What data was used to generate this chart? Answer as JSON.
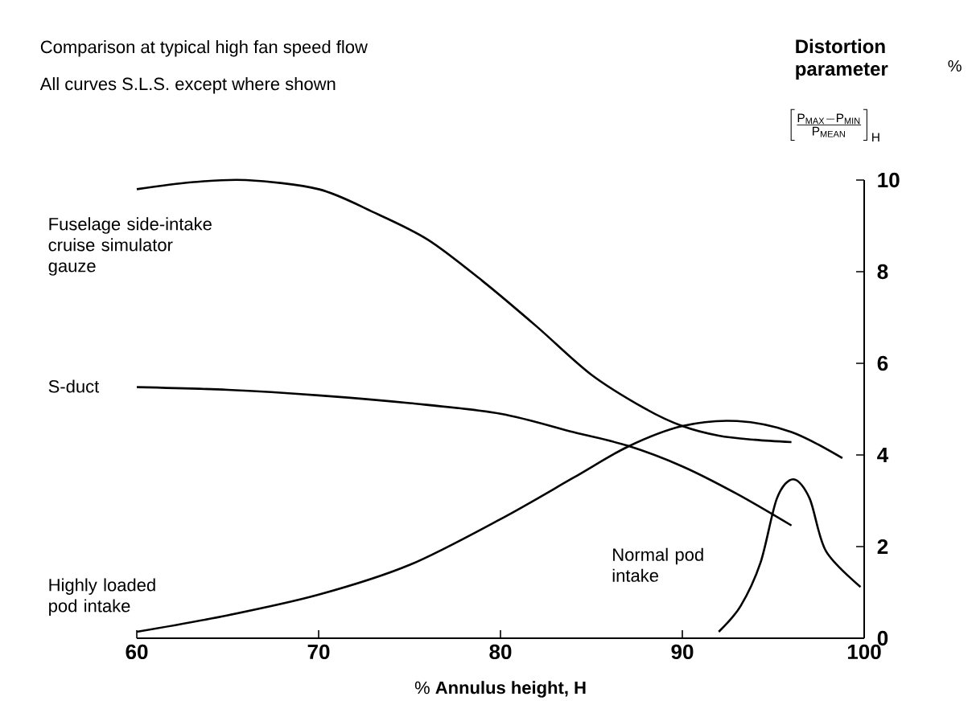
{
  "chart_data": {
    "type": "line",
    "title": "Comparison at typical high fan speed flow",
    "subtitle": "All curves S.L.S. except where shown",
    "xlabel": "% **Annulus height, H**",
    "ylabel": "Distortion parameter",
    "annotations": [
      "%",
      "\\left[\\frac{\\mathrm{P_{MAX}-P_{MIN}}}{\\mathrm{P_{MEAN}}}\\right]_{\\mathrm{H}}"
    ],
    "series": [
      {
        "name": "Fuselage side-intake cruise simulator gauze",
        "color": "#000000",
        "x": [
          60,
          63,
          66,
          70,
          73,
          76,
          79,
          82,
          85,
          88,
          90,
          92,
          94,
          96
        ],
        "values": [
          9.8,
          9.95,
          10.0,
          9.8,
          9.3,
          8.7,
          7.8,
          6.8,
          5.75,
          5.0,
          4.63,
          4.42,
          4.33,
          4.28
        ]
      },
      {
        "name": "S-duct",
        "color": "#000000",
        "x": [
          60,
          65,
          70,
          75,
          80,
          84,
          87,
          90,
          93,
          96
        ],
        "values": [
          5.48,
          5.42,
          5.3,
          5.13,
          4.9,
          4.5,
          4.2,
          3.75,
          3.15,
          2.46
        ]
      },
      {
        "name": "Highly loaded pod intake",
        "color": "#000000",
        "x": [
          60,
          65,
          70,
          75,
          80,
          84,
          87,
          90,
          93,
          96,
          98.8
        ],
        "values": [
          0.14,
          0.5,
          0.95,
          1.6,
          2.6,
          3.5,
          4.18,
          4.63,
          4.74,
          4.5,
          3.93
        ]
      },
      {
        "name": "Normal pod intake",
        "color": "#000000",
        "x": [
          92,
          93.2,
          94.3,
          95.2,
          96.1,
          97,
          97.9,
          99.8
        ],
        "values": [
          0.14,
          0.7,
          1.65,
          3.05,
          3.47,
          3.05,
          1.9,
          1.12
        ]
      }
    ],
    "xlim": [
      60,
      100
    ],
    "ylim": [
      0,
      10
    ],
    "xticks": [
      60,
      70,
      80,
      90,
      100
    ],
    "yticks": [
      0,
      2,
      4,
      6,
      8,
      10
    ],
    "grid": false,
    "line_style": "solid"
  }
}
